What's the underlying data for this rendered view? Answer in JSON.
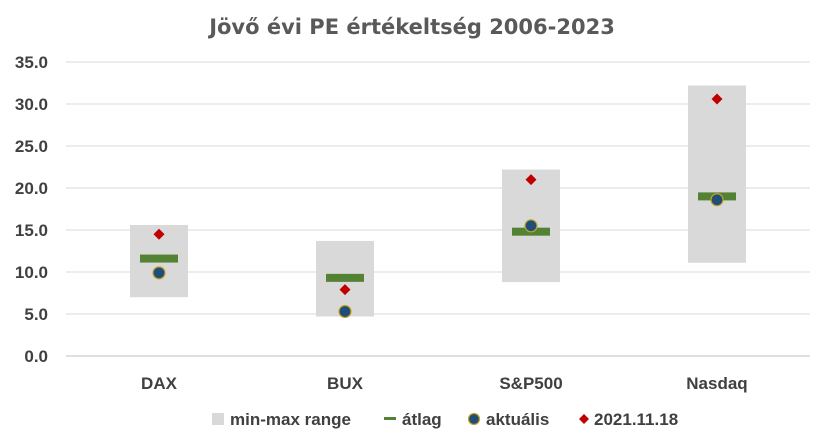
{
  "chart_data": {
    "type": "range-dot",
    "title": "Jövő évi PE értékeltség 2006-2023",
    "categories": [
      "DAX",
      "BUX",
      "S&P500",
      "Nasdaq"
    ],
    "ylim": [
      0,
      35
    ],
    "yticks": [
      "0.0",
      "5.0",
      "10.0",
      "15.0",
      "20.0",
      "25.0",
      "30.0",
      "35.0"
    ],
    "grid": true,
    "legend_position": "bottom",
    "series": [
      {
        "name": "min-max range",
        "kind": "range",
        "min": [
          7.0,
          4.7,
          8.8,
          11.1
        ],
        "max": [
          15.6,
          13.7,
          22.2,
          32.2
        ],
        "color": "#d9d9d9"
      },
      {
        "name": "átlag",
        "kind": "dash",
        "values": [
          11.6,
          9.3,
          14.8,
          19.0
        ],
        "color": "#548235"
      },
      {
        "name": "aktuális",
        "kind": "circle",
        "values": [
          9.9,
          5.3,
          15.5,
          18.6
        ],
        "color": "#1f4e79",
        "edge": "#c9a227"
      },
      {
        "name": "2021.11.18",
        "kind": "diamond",
        "values": [
          14.5,
          7.9,
          21.0,
          30.6
        ],
        "color": "#c00000"
      }
    ]
  }
}
